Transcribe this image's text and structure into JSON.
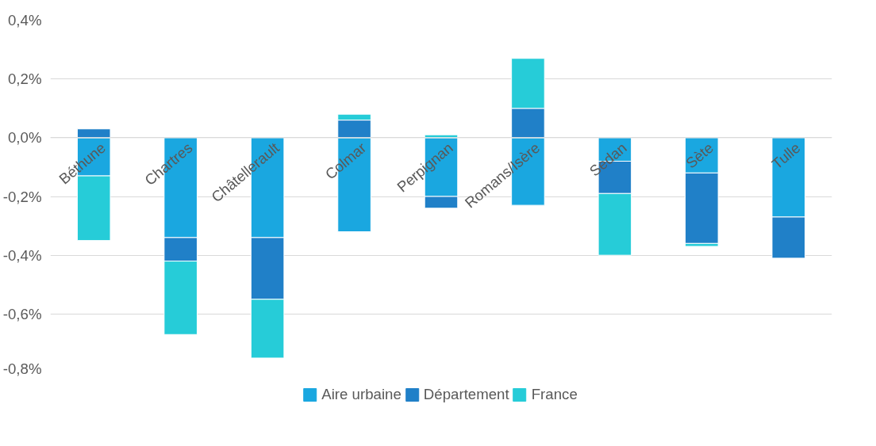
{
  "chart_data": {
    "type": "bar",
    "stacked": true,
    "categories": [
      "Béthune",
      "Chartres",
      "Châtellerault",
      "Colmar",
      "Perpignan",
      "Romans/Isère",
      "Sedan",
      "Sète",
      "Tulle"
    ],
    "series": [
      {
        "name": "Aire urbaine",
        "color": "#1aa7e0",
        "values": [
          -0.13,
          -0.34,
          -0.34,
          -0.32,
          -0.2,
          -0.23,
          -0.08,
          -0.12,
          -0.27
        ]
      },
      {
        "name": "Département",
        "color": "#2080c8",
        "values": [
          0.03,
          -0.08,
          -0.21,
          0.06,
          -0.04,
          0.1,
          -0.11,
          -0.24,
          -0.14
        ]
      },
      {
        "name": "France",
        "color": "#26ccd8",
        "values": [
          -0.22,
          -0.25,
          -0.2,
          0.02,
          0.01,
          0.17,
          -0.21,
          -0.01,
          null
        ]
      }
    ],
    "ylim": [
      -0.8,
      0.4
    ],
    "yticks": [
      {
        "value": -0.8,
        "label": "-0,8%"
      },
      {
        "value": -0.6,
        "label": "-0,6%"
      },
      {
        "value": -0.4,
        "label": "-0,4%"
      },
      {
        "value": -0.2,
        "label": "-0,2%"
      },
      {
        "value": 0,
        "label": "0,0%"
      },
      {
        "value": 0.2,
        "label": "0,2%"
      },
      {
        "value": 0.4,
        "label": "0,4%"
      }
    ],
    "grid": "y",
    "legend": "bottom"
  }
}
